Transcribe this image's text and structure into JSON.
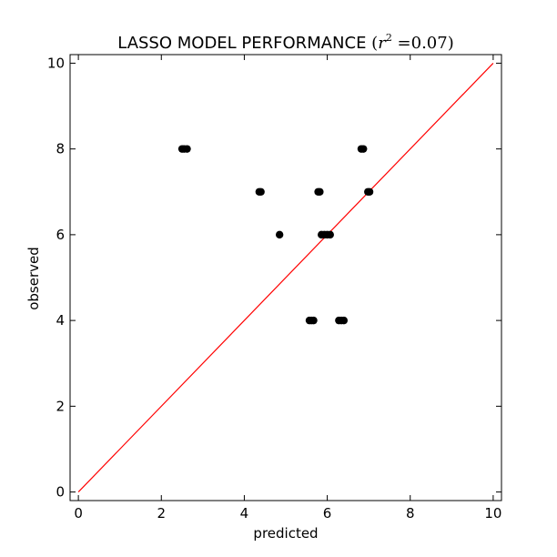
{
  "chart_data": {
    "type": "scatter",
    "title": {
      "main": "LASSO MODEL PERFORMANCE ",
      "open_paren": "(",
      "r": "r",
      "sup": "2",
      "eq": " =0.07",
      "close_paren": ")"
    },
    "xlabel": "predicted",
    "ylabel": "observed",
    "xlim": [
      -0.2,
      10.2
    ],
    "ylim": [
      -0.2,
      10.2
    ],
    "xticks": [
      0,
      2,
      4,
      6,
      8,
      10
    ],
    "yticks": [
      0,
      2,
      4,
      6,
      8,
      10
    ],
    "tick_labels_x": [
      "0",
      "2",
      "4",
      "6",
      "8",
      "10"
    ],
    "tick_labels_y": [
      "0",
      "2",
      "4",
      "6",
      "8",
      "10"
    ],
    "grid": false,
    "legend": "none",
    "points": [
      {
        "x": 2.5,
        "y": 8
      },
      {
        "x": 2.55,
        "y": 8
      },
      {
        "x": 2.62,
        "y": 8
      },
      {
        "x": 6.82,
        "y": 8
      },
      {
        "x": 6.87,
        "y": 8
      },
      {
        "x": 4.36,
        "y": 7
      },
      {
        "x": 4.4,
        "y": 7
      },
      {
        "x": 5.78,
        "y": 7
      },
      {
        "x": 5.82,
        "y": 7
      },
      {
        "x": 6.98,
        "y": 7
      },
      {
        "x": 7.02,
        "y": 7
      },
      {
        "x": 4.85,
        "y": 6
      },
      {
        "x": 5.86,
        "y": 6
      },
      {
        "x": 5.93,
        "y": 6
      },
      {
        "x": 6.0,
        "y": 6
      },
      {
        "x": 6.07,
        "y": 6
      },
      {
        "x": 5.57,
        "y": 4
      },
      {
        "x": 5.62,
        "y": 4
      },
      {
        "x": 5.67,
        "y": 4
      },
      {
        "x": 6.28,
        "y": 4
      },
      {
        "x": 6.34,
        "y": 4
      },
      {
        "x": 6.4,
        "y": 4
      }
    ],
    "reference_line": {
      "x": [
        0,
        10
      ],
      "y": [
        0,
        10
      ],
      "color": "#ff0000"
    },
    "marker_color": "#000000"
  }
}
